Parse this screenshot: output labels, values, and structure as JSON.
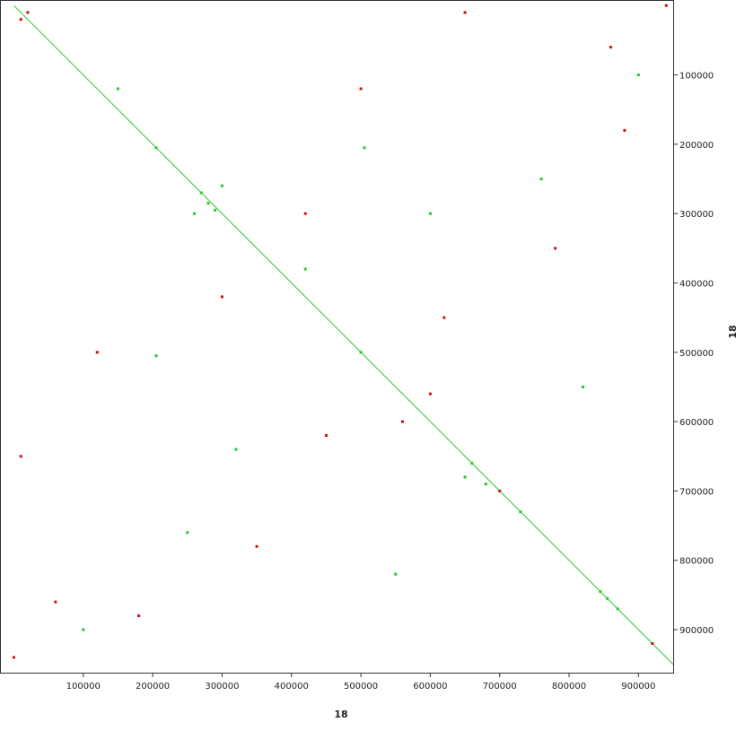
{
  "chart_data": {
    "type": "scatter",
    "xlabel": "18",
    "ylabel": "18",
    "xlim": [
      -20000,
      950000
    ],
    "ylim": [
      -8000,
      962000
    ],
    "xticks": [
      100000,
      200000,
      300000,
      400000,
      500000,
      600000,
      700000,
      800000,
      900000
    ],
    "yticks": [
      100000,
      200000,
      300000,
      400000,
      500000,
      600000,
      700000,
      800000,
      900000
    ],
    "diagonal": {
      "color": "#22cc22",
      "x": [
        0,
        950000
      ],
      "values": [
        0,
        950000
      ]
    },
    "series": [
      {
        "color": "#22cc22",
        "x": [
          280000,
          270000,
          290000,
          260000,
          300000,
          660000,
          680000,
          650000,
          845000,
          855000,
          205000,
          500000,
          505000,
          205000,
          730000,
          870000,
          150000,
          420000,
          320000,
          600000,
          760000,
          250000,
          100000,
          900000,
          550000,
          820000
        ],
        "values": [
          285000,
          270000,
          295000,
          300000,
          260000,
          660000,
          690000,
          680000,
          845000,
          855000,
          205000,
          500000,
          205000,
          505000,
          730000,
          870000,
          120000,
          380000,
          640000,
          300000,
          250000,
          760000,
          900000,
          100000,
          820000,
          550000
        ]
      },
      {
        "color": "#cc1111",
        "x": [
          10000,
          20000,
          120000,
          500000,
          350000,
          780000,
          620000,
          450000,
          700000,
          920000,
          60000,
          860000,
          180000,
          880000,
          300000,
          420000,
          650000,
          10000,
          940000,
          0,
          560000,
          600000
        ],
        "values": [
          20000,
          10000,
          500000,
          120000,
          780000,
          350000,
          450000,
          620000,
          700000,
          920000,
          860000,
          60000,
          880000,
          180000,
          420000,
          300000,
          10000,
          650000,
          0,
          940000,
          600000,
          560000
        ]
      }
    ]
  }
}
